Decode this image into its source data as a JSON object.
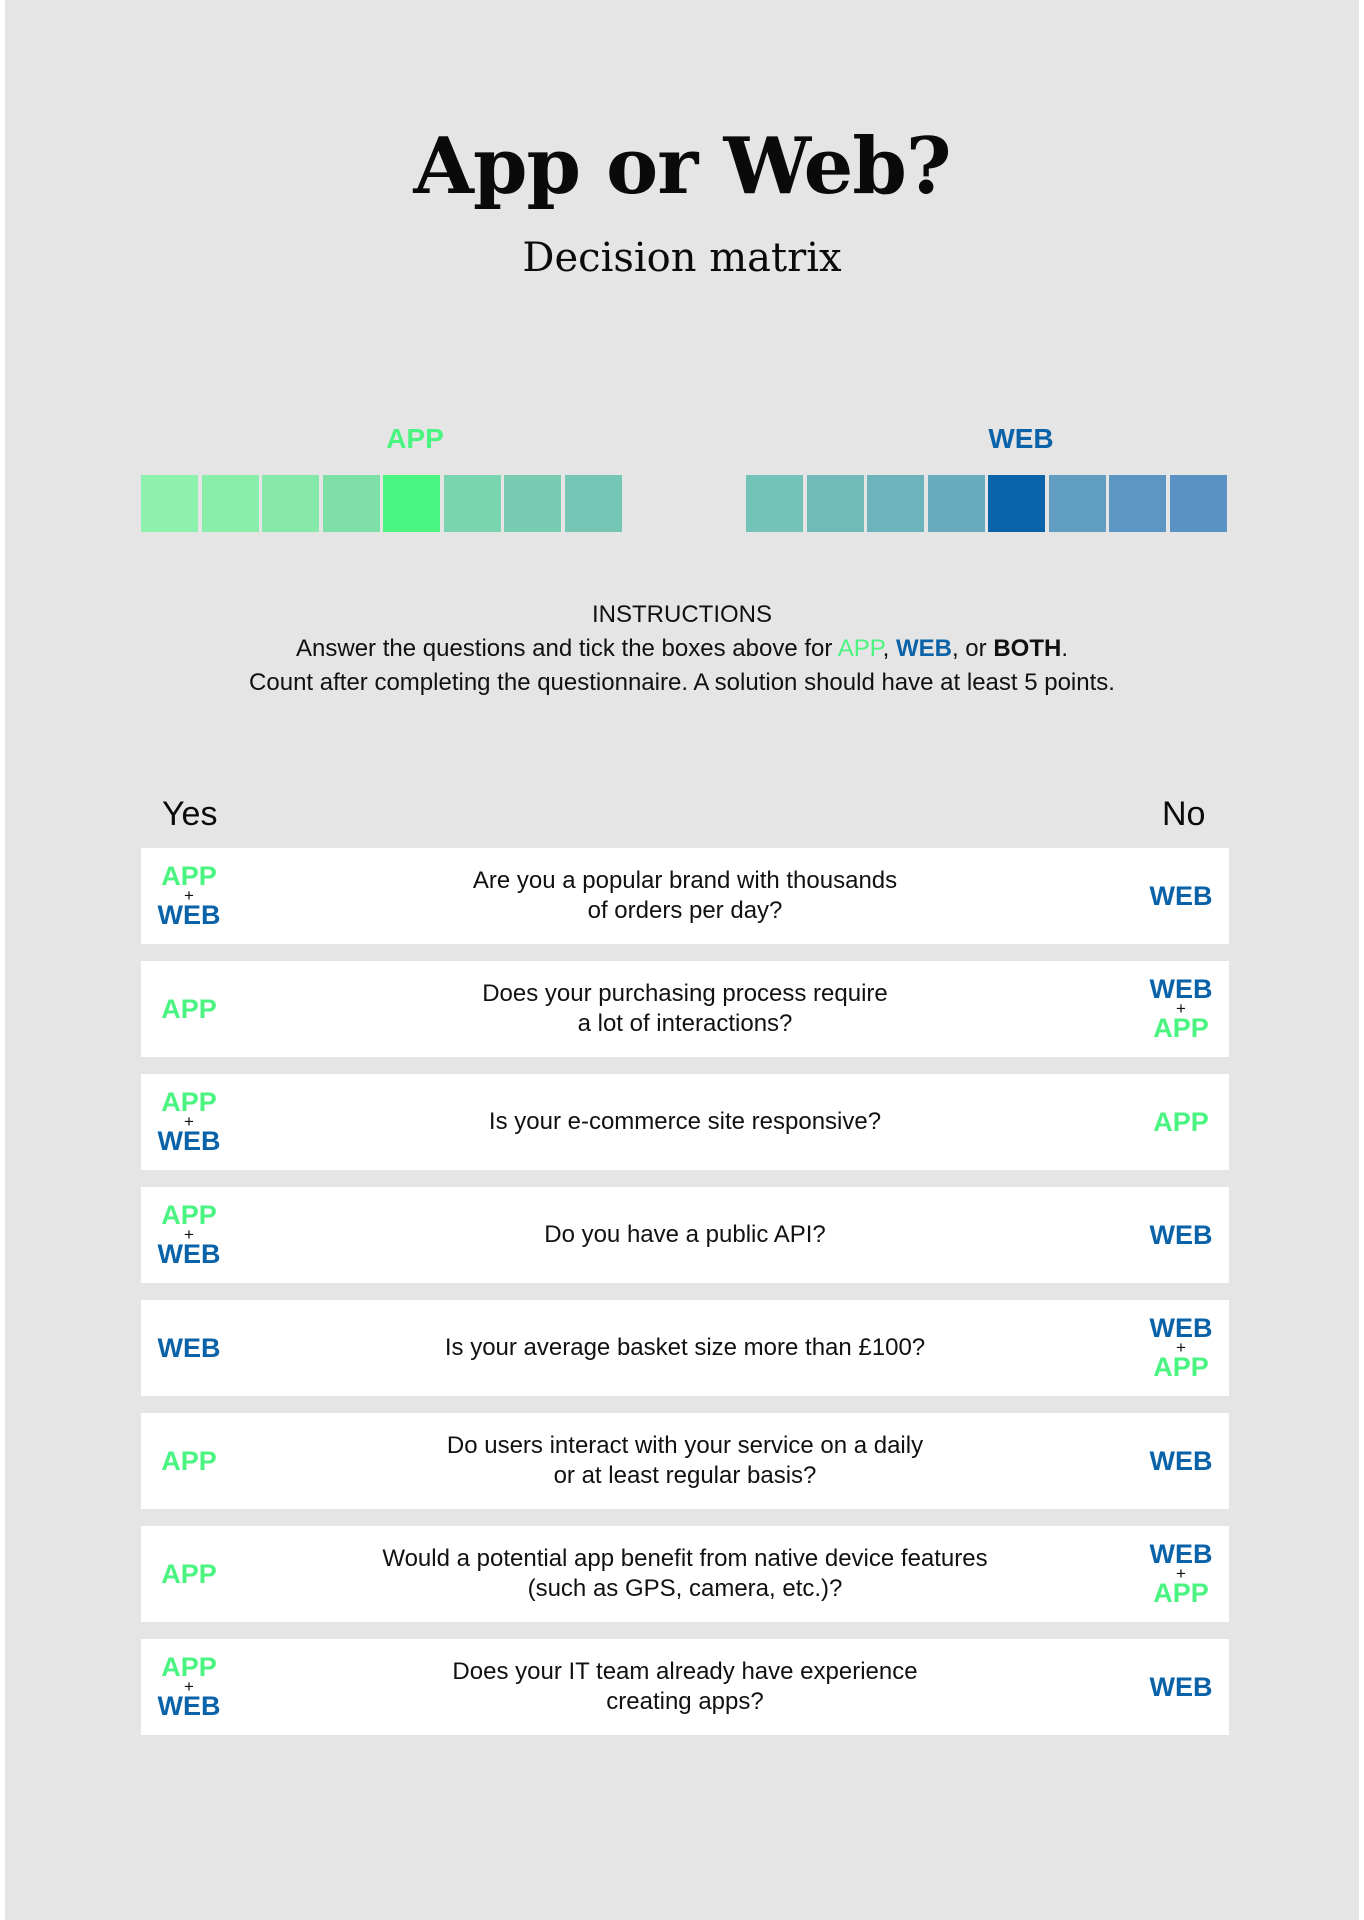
{
  "header": {
    "title": "App or Web?",
    "subtitle": "Decision matrix"
  },
  "scales": {
    "app": {
      "label": "APP",
      "color": "#4af480",
      "boxes": [
        "#8ef2ae",
        "#8aeeab",
        "#86e9a9",
        "#7ee0a7",
        "#4af480",
        "#79d5af",
        "#77ccb1",
        "#75c6b4"
      ]
    },
    "web": {
      "label": "WEB",
      "color": "#0a62a8",
      "boxes": [
        "#74c3b8",
        "#70bbba",
        "#6cb3bb",
        "#68abbd",
        "#0a62a8",
        "#619dc1",
        "#5d95c3",
        "#5a92c3"
      ]
    }
  },
  "instructions": {
    "heading": "INSTRUCTIONS",
    "line1_pre": "Answer the questions and tick the boxes above for ",
    "app": "APP",
    "sep1": ", ",
    "web": "WEB",
    "sep2": ", or ",
    "both": "BOTH",
    "line1_end": ".",
    "line2": "Count after completing the questionnaire. A solution should have at least 5 points."
  },
  "table": {
    "yes_label": "Yes",
    "no_label": "No",
    "rows": [
      {
        "question": [
          "Are you a popular brand with thousands",
          "of orders per day?"
        ],
        "yes": [
          "APP",
          "WEB"
        ],
        "no": [
          "WEB"
        ]
      },
      {
        "question": [
          "Does your purchasing process require",
          "a lot of interactions?"
        ],
        "yes": [
          "APP"
        ],
        "no": [
          "WEB",
          "APP"
        ]
      },
      {
        "question": [
          "Is your e-commerce site responsive?"
        ],
        "yes": [
          "APP",
          "WEB"
        ],
        "no": [
          "APP"
        ]
      },
      {
        "question": [
          "Do you have a public API?"
        ],
        "yes": [
          "APP",
          "WEB"
        ],
        "no": [
          "WEB"
        ]
      },
      {
        "question": [
          "Is your average basket size more than £100?"
        ],
        "yes": [
          "WEB"
        ],
        "no": [
          "WEB",
          "APP"
        ]
      },
      {
        "question": [
          "Do users interact with your service on a daily",
          "or at least regular basis?"
        ],
        "yes": [
          "APP"
        ],
        "no": [
          "WEB"
        ]
      },
      {
        "question": [
          "Would a potential app benefit from native device features",
          "(such as GPS, camera, etc.)?"
        ],
        "yes": [
          "APP"
        ],
        "no": [
          "WEB",
          "APP"
        ]
      },
      {
        "question": [
          "Does your IT team already have experience",
          "creating apps?"
        ],
        "yes": [
          "APP",
          "WEB"
        ],
        "no": [
          "WEB"
        ]
      }
    ]
  }
}
